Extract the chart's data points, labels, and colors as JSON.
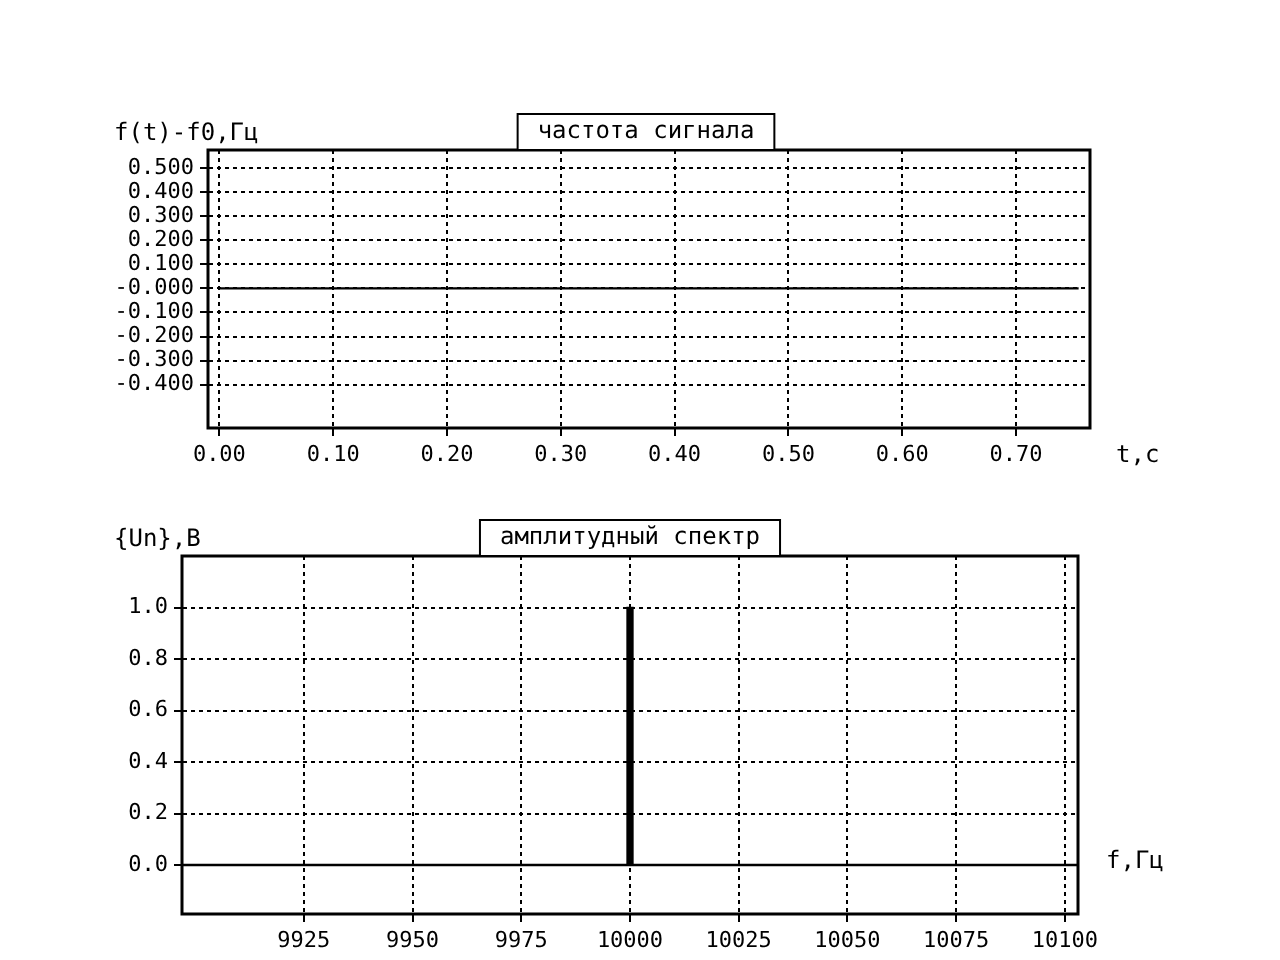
{
  "chart_data": [
    {
      "type": "line",
      "title": "частота сигнала",
      "xlabel": "t,c",
      "ylabel": "f(t)-f0,Гц",
      "series": [
        {
          "color": "#000000",
          "x": [
            0,
            0.755
          ],
          "values": [
            0,
            0
          ]
        }
      ],
      "xlim": [
        -0.01,
        0.765
      ],
      "xticks": [
        {
          "value": 0,
          "label": "0.00"
        },
        {
          "value": 0.1,
          "label": "0.10"
        },
        {
          "value": 0.2,
          "label": "0.20"
        },
        {
          "value": 0.3,
          "label": "0.30"
        },
        {
          "value": 0.4,
          "label": "0.40"
        },
        {
          "value": 0.5,
          "label": "0.50"
        },
        {
          "value": 0.6,
          "label": "0.60"
        },
        {
          "value": 0.7,
          "label": "0.70"
        }
      ],
      "ylim": [
        -0.58,
        0.575
      ],
      "yticks": [
        {
          "value": 0.5,
          "label": "0.500"
        },
        {
          "value": 0.4,
          "label": "0.400"
        },
        {
          "value": 0.3,
          "label": "0.300"
        },
        {
          "value": 0.2,
          "label": "0.200"
        },
        {
          "value": 0.1,
          "label": "0.100"
        },
        {
          "value": 0,
          "label": "-0.000"
        },
        {
          "value": -0.1,
          "label": "-0.100"
        },
        {
          "value": -0.2,
          "label": "-0.200"
        },
        {
          "value": -0.3,
          "label": "-0.300"
        },
        {
          "value": -0.4,
          "label": "-0.400"
        }
      ],
      "grid": true,
      "marker": "none"
    },
    {
      "type": "bar",
      "title": "амплитудный спектр",
      "xlabel": "f,Гц",
      "ylabel": "{Un},В",
      "series": [
        {
          "color": "#000000",
          "x": [
            10000
          ],
          "values": [
            1
          ]
        }
      ],
      "xlim": [
        9897,
        10103
      ],
      "xticks": [
        9925,
        9950,
        9975,
        10000,
        10025,
        10050,
        10075,
        10100
      ],
      "ylim": [
        -0.19,
        1.2
      ],
      "yticks": [
        {
          "value": 0,
          "label": "0.0"
        },
        {
          "value": 0.2,
          "label": "0.2"
        },
        {
          "value": 0.4,
          "label": "0.4"
        },
        {
          "value": 0.6,
          "label": "0.6"
        },
        {
          "value": 0.8,
          "label": "0.8"
        },
        {
          "value": 1,
          "label": "1.0"
        }
      ],
      "ref_lines": [
        {
          "axis": "y",
          "value": 0,
          "color": "#000000"
        }
      ],
      "grid": true
    }
  ]
}
